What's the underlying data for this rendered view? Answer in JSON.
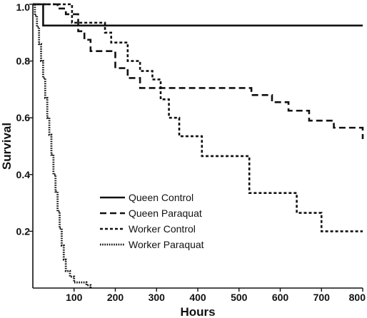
{
  "chart_data": {
    "type": "line",
    "title": "",
    "xlabel": "Hours",
    "ylabel": "Survival",
    "xlim": [
      0,
      800
    ],
    "ylim": [
      0,
      1.0
    ],
    "xticks": [
      100,
      200,
      300,
      400,
      500,
      600,
      700,
      800
    ],
    "xtick_labels": [
      "100",
      "200",
      "300",
      "400",
      "500",
      "600",
      "700",
      "800"
    ],
    "yticks": [
      0.2,
      0.4,
      0.6,
      0.8,
      1.0
    ],
    "ytick_labels": [
      "0.2",
      "0.4",
      "0.6",
      "0.8",
      "1.0"
    ],
    "grid": false,
    "legend_position": "lower-center",
    "series": [
      {
        "name": "Queen Control",
        "style": "solid",
        "step": true,
        "x": [
          0,
          25,
          800
        ],
        "y": [
          1.0,
          0.925,
          0.925
        ]
      },
      {
        "name": "Queen Paraquat",
        "style": "dashed",
        "step": true,
        "x": [
          0,
          60,
          80,
          110,
          125,
          140,
          200,
          230,
          260,
          530,
          580,
          620,
          670,
          730,
          800
        ],
        "y": [
          1.0,
          0.985,
          0.965,
          0.905,
          0.875,
          0.835,
          0.775,
          0.74,
          0.705,
          0.68,
          0.655,
          0.625,
          0.59,
          0.565,
          0.525
        ]
      },
      {
        "name": "Worker Control",
        "style": "dotted",
        "step": true,
        "x": [
          0,
          95,
          175,
          190,
          230,
          260,
          290,
          310,
          330,
          355,
          410,
          525,
          640,
          700,
          800
        ],
        "y": [
          1.0,
          0.935,
          0.9,
          0.865,
          0.8,
          0.765,
          0.735,
          0.665,
          0.6,
          0.535,
          0.465,
          0.335,
          0.265,
          0.2,
          0.2
        ]
      },
      {
        "name": "Worker Paraquat",
        "style": "densely-dotted",
        "step": true,
        "x": [
          0,
          5,
          10,
          15,
          20,
          25,
          30,
          35,
          40,
          45,
          50,
          55,
          60,
          65,
          70,
          75,
          80,
          90,
          100,
          130,
          140
        ],
        "y": [
          1.0,
          0.96,
          0.92,
          0.86,
          0.8,
          0.74,
          0.67,
          0.6,
          0.54,
          0.47,
          0.4,
          0.34,
          0.27,
          0.21,
          0.15,
          0.1,
          0.06,
          0.04,
          0.02,
          0.01,
          0.0
        ]
      }
    ]
  }
}
